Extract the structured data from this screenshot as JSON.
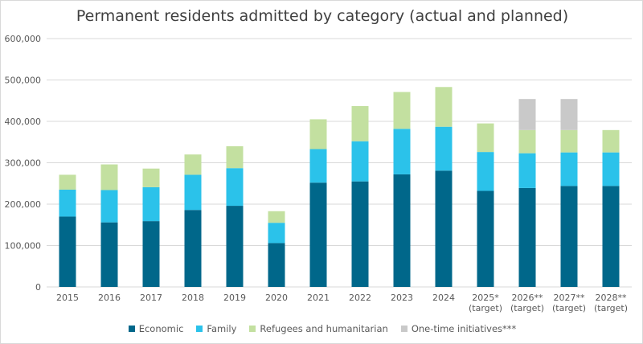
{
  "chart_data": {
    "type": "bar",
    "stacked": true,
    "title": "Permanent residents admitted by category (actual and planned)",
    "xlabel": "",
    "ylabel": "",
    "ylim": [
      0,
      600000
    ],
    "yticks": [
      "0",
      "100,000",
      "200,000",
      "300,000",
      "400,000",
      "500,000",
      "600,000"
    ],
    "grid": true,
    "legend_position": "bottom",
    "categories": [
      [
        "2015"
      ],
      [
        "2016"
      ],
      [
        "2017"
      ],
      [
        "2018"
      ],
      [
        "2019"
      ],
      [
        "2020"
      ],
      [
        "2021"
      ],
      [
        "2022"
      ],
      [
        "2023"
      ],
      [
        "2024"
      ],
      [
        "2025*",
        "(target)"
      ],
      [
        "2026**",
        "(target)"
      ],
      [
        "2027**",
        "(target)"
      ],
      [
        "2028**",
        "(target)"
      ]
    ],
    "series": [
      {
        "name": "Economic",
        "color": "#00678a",
        "values": [
          170000,
          156000,
          159000,
          186000,
          196000,
          106000,
          252000,
          255000,
          272000,
          281000,
          232000,
          239000,
          244000,
          244000
        ]
      },
      {
        "name": "Family",
        "color": "#2bc2ea",
        "values": [
          65000,
          78000,
          82000,
          85000,
          91000,
          49000,
          81000,
          97000,
          110000,
          106000,
          94000,
          84000,
          81000,
          81000
        ]
      },
      {
        "name": "Refugees and humanitarian",
        "color": "#c3e0a0",
        "values": [
          36000,
          62000,
          45000,
          49000,
          53000,
          28000,
          72000,
          85000,
          89000,
          96000,
          69000,
          56000,
          54000,
          54000
        ]
      },
      {
        "name": "One-time initiatives***",
        "color": "#c9c9c9",
        "values": [
          0,
          0,
          0,
          0,
          0,
          0,
          0,
          0,
          0,
          0,
          0,
          75000,
          75000,
          0
        ]
      }
    ]
  }
}
